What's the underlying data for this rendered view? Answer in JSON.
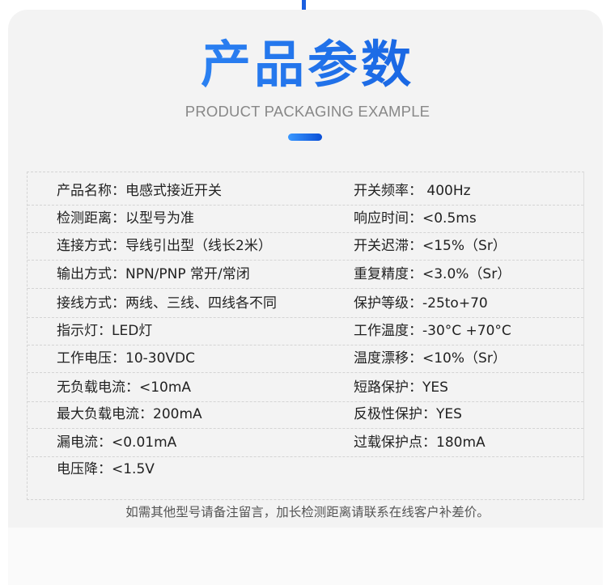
{
  "header": {
    "title": "产品参数",
    "subtitle": "PRODUCT PACKAGING EXAMPLE"
  },
  "rows": [
    {
      "left": "产品名称：电感式接近开关",
      "right": "开关频率： 400Hz"
    },
    {
      "left": "检测距离：以型号为准",
      "right": "响应时间：<0.5ms"
    },
    {
      "left": "连接方式：导线引出型（线长2米）",
      "right": "开关迟滞：<15%（Sr）"
    },
    {
      "left": "输出方式：NPN/PNP 常开/常闭",
      "right": "重复精度：<3.0%（Sr）"
    },
    {
      "left": "接线方式：两线、三线、四线各不同",
      "right": "保护等级：-25to+70"
    },
    {
      "left": "指示灯：LED灯",
      "right": "工作温度：-30°C +70°C"
    },
    {
      "left": "工作电压：10-30VDC",
      "right": "温度漂移：<10%（Sr）"
    },
    {
      "left": "无负载电流：<10mA",
      "right": "短路保护：YES"
    },
    {
      "left": "最大负载电流：200mA",
      "right": "反极性保护：YES"
    },
    {
      "left": "漏电流：<0.01mA",
      "right": "过载保护点：180mA"
    },
    {
      "left": "电压降：<1.5V",
      "right": ""
    }
  ],
  "note": "如需其他型号请备注留言，加长检测距离请联系在线客户补差价。",
  "colors": {
    "accent_start": "#3a98ff",
    "accent_end": "#0a4fd6",
    "card_bg": "#f3f3f3"
  }
}
